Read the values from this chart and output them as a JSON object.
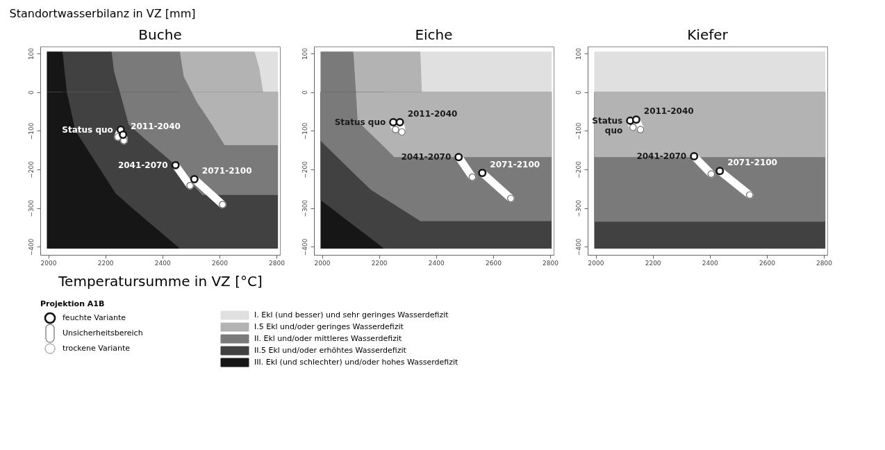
{
  "chart_data": [
    {
      "type": "scatter",
      "title": "Buche",
      "xlabel": "Temperatursumme in VZ [°C]",
      "ylabel": "Standortwasserbilanz in VZ [mm]",
      "legend_title": "Projektion A1B",
      "legend": "bottom",
      "grid": false,
      "xlim": [
        1972,
        2812
      ],
      "ylim": [
        -421,
        118
      ],
      "xticks": [
        2000,
        2200,
        2400,
        2600,
        2800
      ],
      "yticks": [
        -400,
        -300,
        -200,
        -100,
        0,
        100
      ],
      "series": [
        {
          "type": "area",
          "name": "I.  Ekl (und besser) und sehr geringes Wasserdefizit",
          "color": "#e0e0e0",
          "x": [
            2723,
            2805
          ],
          "values": [
            105,
            105
          ]
        },
        {
          "type": "area",
          "name": "I.5  Ekl und/oder geringes Wasserdefizit",
          "color": "#b3b3b3",
          "x": [
            2461,
            2723,
            2740,
            2753,
            2805
          ],
          "values": [
            105,
            105,
            60,
            0,
            0
          ]
        },
        {
          "type": "area",
          "name": "II.  Ekl und/oder mittleres Wasserdefizit",
          "color": "#7a7a7a",
          "x": [
            2222,
            2461,
            2475,
            2503,
            2805
          ],
          "values": [
            105,
            105,
            40,
            0,
            0
          ]
        },
        {
          "type": "area",
          "name": "II.5 Ekl und/oder erhöhtes Wasserdefizit",
          "color": "#414141",
          "x": [
            2050,
            2222,
            2230,
            2237,
            2251,
            2805
          ],
          "values": [
            105,
            105,
            55,
            36,
            0,
            0
          ]
        },
        {
          "type": "area",
          "name": "III. Ekl (und schlechter) und/oder hohes Wasserdefizit",
          "color": "#161616",
          "x": [
            1995,
            2050,
            2065
          ],
          "values": [
            105,
            105,
            0
          ]
        },
        {
          "type": "area",
          "color": "#161616",
          "x": [
            1995,
            2461
          ],
          "values": [
            -405,
            -405
          ]
        },
        {
          "type": "area",
          "color": "#414141",
          "x": [
            2065,
            2095,
            2222,
            2230,
            2237,
            2251,
            2282,
            2350,
            2446,
            2461,
            2805
          ],
          "values": [
            0,
            -100,
            -246,
            -255,
            -263,
            -272,
            -292,
            -335,
            -395,
            -405,
            -405
          ]
        },
        {
          "type": "area",
          "color": "#7a7a7a",
          "x": [
            2251,
            2282,
            2350,
            2446,
            2461,
            2475,
            2503,
            2521,
            2540,
            2805
          ],
          "values": [
            0,
            -84,
            -128,
            -189,
            -201,
            -212,
            -236,
            -251,
            -266,
            -266
          ]
        },
        {
          "type": "area",
          "color": "#b3b3b3",
          "x": [
            2503,
            2521,
            2540,
            2570,
            2618,
            2805
          ],
          "values": [
            0,
            -26,
            -47,
            -80,
            -137,
            -137
          ]
        },
        {
          "name": "feuchte Variante",
          "marker": "circle",
          "color": "#ffffff",
          "x": [
            2254,
            2262,
            2446,
            2512
          ],
          "values": [
            -97,
            -110,
            -189,
            -225
          ]
        },
        {
          "type": "line",
          "name": "Unsicherheitsbereich",
          "color": "#ffffff",
          "x": [
            2254,
            2244
          ],
          "values": [
            -97,
            -116
          ]
        },
        {
          "type": "line",
          "color": "#ffffff",
          "x": [
            2262,
            2265
          ],
          "values": [
            -110,
            -125
          ]
        },
        {
          "type": "line",
          "color": "#ffffff",
          "x": [
            2446,
            2497
          ],
          "values": [
            -189,
            -242
          ]
        },
        {
          "type": "line",
          "color": "#ffffff",
          "x": [
            2512,
            2611
          ],
          "values": [
            -225,
            -291
          ]
        },
        {
          "name": "trockene Variante",
          "marker": "circle",
          "color": "#ffffff",
          "x": [
            2244,
            2265,
            2497,
            2611
          ],
          "values": [
            -116,
            -125,
            -242,
            -291
          ]
        }
      ],
      "annotations": [
        {
          "text": "Status quo",
          "x": 2254,
          "y": -97
        },
        {
          "text": "2011-2040",
          "x": 2262,
          "y": -110
        },
        {
          "text": "2041-2070",
          "x": 2446,
          "y": -189
        },
        {
          "text": "2071-2100",
          "x": 2512,
          "y": -225
        }
      ]
    },
    {
      "type": "scatter",
      "title": "Eiche",
      "grid": false,
      "xlim": [
        1972,
        2812
      ],
      "ylim": [
        -421,
        118
      ],
      "xticks": [
        2000,
        2200,
        2400,
        2600,
        2800
      ],
      "yticks": [
        -400,
        -300,
        -200,
        -100,
        0,
        100
      ],
      "series": [
        {
          "type": "area",
          "color": "#e0e0e0",
          "x": [
            2345,
            2805
          ],
          "values": [
            105,
            105
          ]
        },
        {
          "type": "area",
          "color": "#b3b3b3",
          "x": [
            2110,
            2345,
            2350,
            2805
          ],
          "values": [
            105,
            105,
            0,
            0
          ]
        },
        {
          "type": "area",
          "color": "#7a7a7a",
          "x": [
            1995,
            2110,
            2119
          ],
          "values": [
            105,
            105,
            0
          ]
        },
        {
          "type": "area",
          "color": "#161616",
          "x": [
            1995,
            2217
          ],
          "values": [
            -405,
            -405
          ]
        },
        {
          "type": "area",
          "color": "#414141",
          "x": [
            1995,
            2110,
            2172,
            2217,
            2805
          ],
          "values": [
            -279,
            -344,
            -379,
            -405,
            -405
          ]
        },
        {
          "type": "area",
          "color": "#7a7a7a",
          "x": [
            1995,
            2110,
            2172,
            2217,
            2254,
            2345,
            2805
          ],
          "values": [
            -126,
            -209,
            -253,
            -274,
            -291,
            -334,
            -334
          ]
        },
        {
          "type": "area",
          "color": "#b3b3b3",
          "x": [
            2119,
            2125,
            2172,
            2217,
            2254,
            2805
          ],
          "values": [
            0,
            -75,
            -109,
            -141,
            -168,
            -168
          ]
        },
        {
          "marker": "circle",
          "color": "#ffffff",
          "x": [
            2250,
            2273,
            2479,
            2562
          ],
          "values": [
            -78,
            -78,
            -168,
            -209
          ]
        },
        {
          "type": "line",
          "color": "#ffffff",
          "x": [
            2250,
            2258
          ],
          "values": [
            -78,
            -97
          ]
        },
        {
          "type": "line",
          "color": "#ffffff",
          "x": [
            2273,
            2280
          ],
          "values": [
            -78,
            -103
          ]
        },
        {
          "type": "line",
          "color": "#ffffff",
          "x": [
            2479,
            2527
          ],
          "values": [
            -168,
            -220
          ]
        },
        {
          "type": "line",
          "color": "#ffffff",
          "x": [
            2562,
            2662
          ],
          "values": [
            -209,
            -275
          ]
        },
        {
          "marker": "circle",
          "color": "#ffffff",
          "x": [
            2258,
            2280,
            2527,
            2662
          ],
          "values": [
            -97,
            -103,
            -220,
            -275
          ]
        }
      ],
      "annotations": [
        {
          "text": "Status quo",
          "x": 2250,
          "y": -78
        },
        {
          "text": "2011-2040",
          "x": 2273,
          "y": -78
        },
        {
          "text": "2041-2070",
          "x": 2479,
          "y": -168
        },
        {
          "text": "2071-2100",
          "x": 2562,
          "y": -209
        }
      ]
    },
    {
      "type": "scatter",
      "title": "Kiefer",
      "grid": false,
      "xlim": [
        1972,
        2812
      ],
      "ylim": [
        -421,
        118
      ],
      "xticks": [
        2000,
        2200,
        2400,
        2600,
        2800
      ],
      "yticks": [
        -400,
        -300,
        -200,
        -100,
        0,
        100
      ],
      "series": [
        {
          "type": "area",
          "color": "#e0e0e0",
          "x": [
            1995,
            2805
          ],
          "values": [
            105,
            105
          ]
        },
        {
          "type": "area",
          "color": "#414141",
          "x": [
            1995,
            2805
          ],
          "values": [
            -405,
            -405
          ]
        },
        {
          "type": "area",
          "color": "#7a7a7a",
          "x": [
            1995,
            2805
          ],
          "values": [
            -335,
            -335
          ]
        },
        {
          "type": "area",
          "color": "#b3b3b3",
          "x": [
            1995,
            2805
          ],
          "values": [
            -168,
            -168
          ]
        },
        {
          "marker": "circle",
          "color": "#ffffff",
          "x": [
            2121,
            2142,
            2345,
            2435
          ],
          "values": [
            -74,
            -71,
            -166,
            -204
          ]
        },
        {
          "type": "line",
          "color": "#ffffff",
          "x": [
            2121,
            2131
          ],
          "values": [
            -74,
            -91
          ]
        },
        {
          "type": "line",
          "color": "#ffffff",
          "x": [
            2142,
            2157
          ],
          "values": [
            -71,
            -97
          ]
        },
        {
          "type": "line",
          "color": "#ffffff",
          "x": [
            2345,
            2405
          ],
          "values": [
            -166,
            -212
          ]
        },
        {
          "type": "line",
          "color": "#ffffff",
          "x": [
            2435,
            2540
          ],
          "values": [
            -204,
            -266
          ]
        },
        {
          "marker": "circle",
          "color": "#ffffff",
          "x": [
            2131,
            2157,
            2405,
            2540
          ],
          "values": [
            -91,
            -97,
            -212,
            -266
          ]
        }
      ],
      "annotations": [
        {
          "text": "Status\nquo",
          "x": 2121,
          "y": -74
        },
        {
          "text": "2011-2040",
          "x": 2142,
          "y": -71
        },
        {
          "text": "2041-2070",
          "x": 2345,
          "y": -166
        },
        {
          "text": "2071-2100",
          "x": 2435,
          "y": -204
        }
      ]
    }
  ]
}
